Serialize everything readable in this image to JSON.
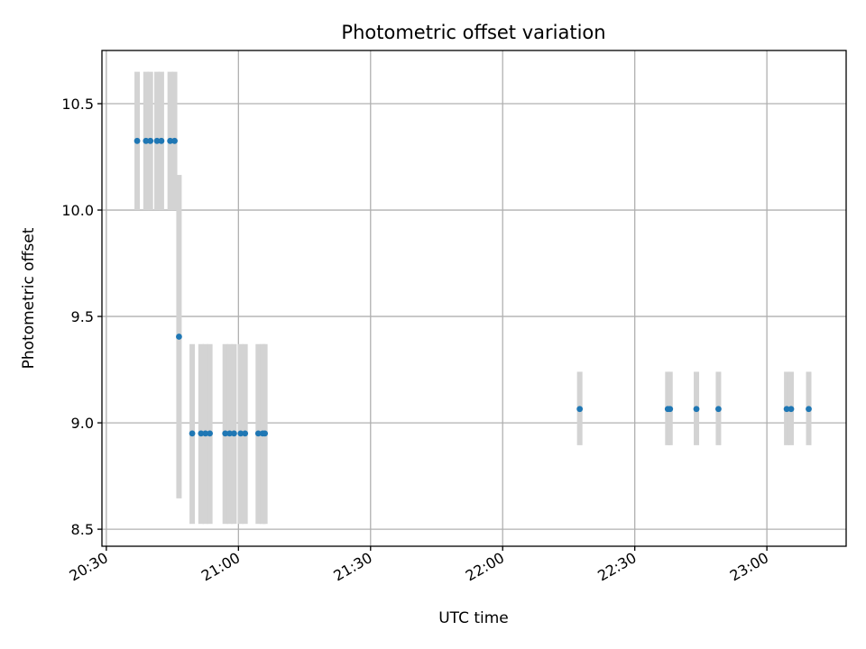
{
  "chart_data": {
    "type": "scatter",
    "title": "Photometric offset variation",
    "xlabel": "UTC time",
    "ylabel": "Photometric offset",
    "xlim": [
      "20:29",
      "23:18"
    ],
    "ylim": [
      8.42,
      10.75
    ],
    "x_ticks": [
      "20:30",
      "21:00",
      "21:30",
      "22:00",
      "22:30",
      "23:00"
    ],
    "y_ticks": [
      8.5,
      9.0,
      9.5,
      10.0,
      10.5
    ],
    "grid": true,
    "colors": {
      "point": "#1f77b4",
      "errorbar": "#d3d3d3"
    },
    "series": [
      {
        "points": [
          {
            "x": "20:37:00",
            "y": 10.325,
            "lo": 10.0,
            "hi": 10.65
          },
          {
            "x": "20:39:00",
            "y": 10.325,
            "lo": 10.0,
            "hi": 10.65
          },
          {
            "x": "20:40:00",
            "y": 10.325,
            "lo": 10.0,
            "hi": 10.65
          },
          {
            "x": "20:41:30",
            "y": 10.325,
            "lo": 10.0,
            "hi": 10.65
          },
          {
            "x": "20:42:30",
            "y": 10.325,
            "lo": 10.0,
            "hi": 10.65
          },
          {
            "x": "20:44:30",
            "y": 10.325,
            "lo": 10.0,
            "hi": 10.65
          },
          {
            "x": "20:45:30",
            "y": 10.325,
            "lo": 10.0,
            "hi": 10.65
          },
          {
            "x": "20:46:30",
            "y": 9.405,
            "lo": 8.645,
            "hi": 10.165
          },
          {
            "x": "20:49:30",
            "y": 8.95,
            "lo": 8.525,
            "hi": 9.37
          },
          {
            "x": "20:51:30",
            "y": 8.95,
            "lo": 8.525,
            "hi": 9.37
          },
          {
            "x": "20:52:30",
            "y": 8.95,
            "lo": 8.525,
            "hi": 9.37
          },
          {
            "x": "20:53:30",
            "y": 8.95,
            "lo": 8.525,
            "hi": 9.37
          },
          {
            "x": "20:57:00",
            "y": 8.95,
            "lo": 8.525,
            "hi": 9.37
          },
          {
            "x": "20:58:00",
            "y": 8.95,
            "lo": 8.525,
            "hi": 9.37
          },
          {
            "x": "20:59:00",
            "y": 8.95,
            "lo": 8.525,
            "hi": 9.37
          },
          {
            "x": "21:00:30",
            "y": 8.95,
            "lo": 8.525,
            "hi": 9.37
          },
          {
            "x": "21:01:30",
            "y": 8.95,
            "lo": 8.525,
            "hi": 9.37
          },
          {
            "x": "21:04:30",
            "y": 8.95,
            "lo": 8.525,
            "hi": 9.37
          },
          {
            "x": "21:05:30",
            "y": 8.95,
            "lo": 8.525,
            "hi": 9.37
          },
          {
            "x": "21:06:00",
            "y": 8.95,
            "lo": 8.525,
            "hi": 9.37
          },
          {
            "x": "22:17:30",
            "y": 9.065,
            "lo": 8.895,
            "hi": 9.24
          },
          {
            "x": "22:37:30",
            "y": 9.065,
            "lo": 8.895,
            "hi": 9.24
          },
          {
            "x": "22:38:00",
            "y": 9.065,
            "lo": 8.895,
            "hi": 9.24
          },
          {
            "x": "22:44:00",
            "y": 9.065,
            "lo": 8.895,
            "hi": 9.24
          },
          {
            "x": "22:49:00",
            "y": 9.065,
            "lo": 8.895,
            "hi": 9.24
          },
          {
            "x": "23:04:30",
            "y": 9.065,
            "lo": 8.895,
            "hi": 9.24
          },
          {
            "x": "23:05:30",
            "y": 9.065,
            "lo": 8.895,
            "hi": 9.24
          },
          {
            "x": "23:09:30",
            "y": 9.065,
            "lo": 8.895,
            "hi": 9.24
          }
        ]
      }
    ]
  }
}
